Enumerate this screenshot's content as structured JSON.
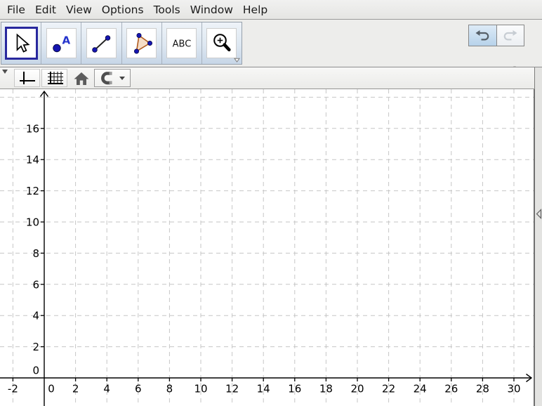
{
  "menubar": {
    "items": [
      "File",
      "Edit",
      "View",
      "Options",
      "Tools",
      "Window",
      "Help"
    ]
  },
  "toolbar": {
    "tools": [
      {
        "id": "move",
        "selected": true
      },
      {
        "id": "point",
        "label": "A",
        "selected": false
      },
      {
        "id": "segment",
        "selected": false
      },
      {
        "id": "polygon",
        "selected": false
      },
      {
        "id": "text",
        "label": "ABC",
        "selected": false
      },
      {
        "id": "zoom-in",
        "selected": false,
        "has_dropdown": true
      }
    ],
    "undo_enabled": true,
    "redo_enabled": false,
    "help_label": "?"
  },
  "stylebar": {
    "buttons": [
      "show-axes",
      "show-grid",
      "standard-view",
      "point-capturing"
    ]
  },
  "graphics": {
    "x_ticks": [
      -2,
      0,
      2,
      4,
      6,
      8,
      10,
      12,
      14,
      16,
      18,
      20,
      22,
      24,
      26,
      28,
      30
    ],
    "y_ticks": [
      0,
      2,
      4,
      6,
      8,
      10,
      12,
      14,
      16
    ],
    "y_gridlines": [
      2,
      4,
      6,
      8,
      10,
      12,
      14,
      16,
      18
    ],
    "grid_step": 2,
    "colors": {
      "axis": "#000000",
      "grid": "#c6c6c6",
      "background": "#ffffff"
    }
  },
  "theme": {
    "accent_selected": "#28289e",
    "icon_blue": "#1515b0",
    "polygon_fill": "#f6ddc6",
    "polygon_stroke": "#b05a1e",
    "undo_arrow": "#565f68",
    "redo_arrow": "#c7cdd3",
    "gray_icon": "#878787"
  }
}
